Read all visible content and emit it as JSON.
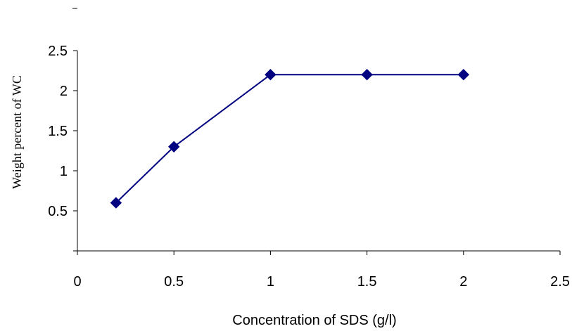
{
  "chart_data": {
    "type": "line",
    "title": "",
    "xlabel": "Concentration of SDS (g/l)",
    "ylabel": "Weight percent of WC",
    "xlim": [
      0,
      2.5
    ],
    "ylim": [
      0,
      2.5
    ],
    "x_ticks": [
      "0",
      "0.5",
      "1",
      "1.5",
      "2",
      "2.5"
    ],
    "y_ticks": [
      "0.5",
      "1",
      "1.5",
      "2",
      "2.5"
    ],
    "grid": false,
    "legend": "none",
    "series": [
      {
        "color": "#000080",
        "marker": "diamond",
        "points": [
          {
            "x": 0.2,
            "y": 0.6
          },
          {
            "x": 0.5,
            "y": 1.3
          },
          {
            "x": 1.0,
            "y": 2.2
          },
          {
            "x": 1.5,
            "y": 2.2
          },
          {
            "x": 2.0,
            "y": 2.2
          }
        ]
      }
    ]
  }
}
